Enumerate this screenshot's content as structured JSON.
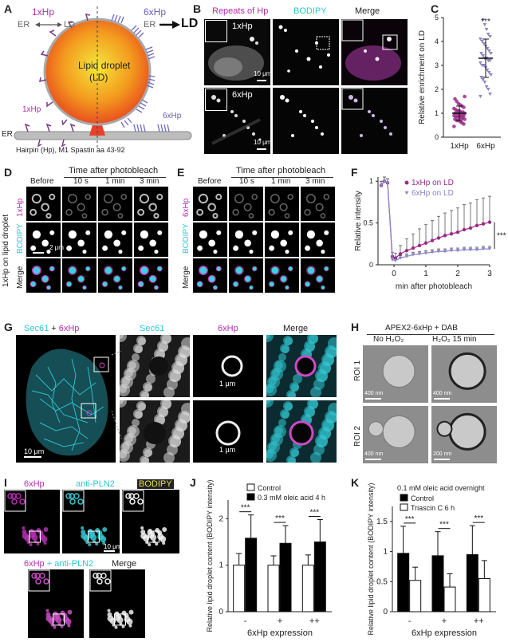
{
  "panels": {
    "A": {
      "letter": "A",
      "label_1x": "1xHp",
      "label_6x": "6xHp",
      "er_left": "ER",
      "arrow_left": "⟷",
      "ld_left": "LD",
      "er_right": "ER",
      "ld_right": "LD",
      "droplet": "Lipid droplet",
      "droplet_sub": "(LD)",
      "label_1x_bottom": "1xHp",
      "label_6x_bottom": "6xHp",
      "er_bottom": "ER",
      "caption": "Hairpin (Hp), M1 Spastin aa 43-92"
    },
    "B": {
      "letter": "B",
      "col1": "Repeats of Hp",
      "col2": "BODIPY",
      "col3": "Merge",
      "row1": "1xHp",
      "row2": "6xHp",
      "scale1": "10 μm",
      "scale2": "10 μm"
    },
    "C": {
      "letter": "C",
      "sig": "***"
    },
    "D": {
      "letter": "D",
      "header": "Time after photobleach",
      "cols": [
        "Before",
        "10 s",
        "1 min",
        "3 min"
      ],
      "rows": [
        "1xHp",
        "BODIPY",
        "Merge"
      ],
      "side": "1xHp on lipid droplet",
      "scale": "2 μm"
    },
    "E": {
      "letter": "E",
      "header": "Time after photobleach",
      "cols": [
        "Before",
        "10 s",
        "1 min",
        "3 min"
      ],
      "rows": [
        "6xHp",
        "BODIPY",
        "Merge"
      ]
    },
    "F": {
      "letter": "F",
      "sig": "***"
    },
    "G": {
      "letter": "G",
      "title_a": "Sec61",
      "title_plus": " + ",
      "title_b": "6xHp",
      "cols": [
        "Sec61",
        "6xHp",
        "Merge"
      ],
      "scale_main": "10 μm",
      "scale_zoom1": "1 μm",
      "scale_zoom2": "1 μm"
    },
    "H": {
      "letter": "H",
      "title": "APEX2-6xHp + DAB",
      "col1": "No H₂O₂",
      "col2": "H₂O₂ 15 min",
      "row1": "ROI 1",
      "row2": "ROI 2",
      "scales": [
        "400 nm",
        "400 nm",
        "400 nm",
        "200 nm"
      ]
    },
    "I": {
      "letter": "I",
      "c1": "6xHp",
      "c2": "anti-PLN2",
      "c3": "BODIPY",
      "c4a": "6xHp",
      "c4plus": " + ",
      "c4b": "anti-PLN2",
      "c5": "Merge",
      "scale": "10 μm"
    },
    "J": {
      "letter": "J"
    },
    "K": {
      "letter": "K"
    }
  },
  "chart_data": [
    {
      "panel": "C",
      "type": "scatter",
      "ylabel": "Relative enrichment on LD",
      "categories": [
        "1xHp",
        "6xHp"
      ],
      "yticks": [
        0,
        1,
        2,
        3,
        4,
        5
      ],
      "ylim": [
        0,
        5
      ],
      "series": [
        {
          "name": "1xHp",
          "color": "#9c2a87",
          "mean": 1.0,
          "sd": 0.3,
          "values": [
            0.45,
            0.55,
            0.6,
            0.65,
            0.7,
            0.7,
            0.75,
            0.75,
            0.8,
            0.8,
            0.85,
            0.85,
            0.85,
            0.9,
            0.9,
            0.9,
            0.95,
            0.95,
            1.0,
            1.0,
            1.0,
            1.05,
            1.05,
            1.1,
            1.1,
            1.15,
            1.2,
            1.25,
            1.3,
            1.35,
            1.4,
            1.5,
            1.6,
            1.7
          ]
        },
        {
          "name": "6xHp",
          "color": "#7d6fb8",
          "mean": 3.3,
          "sd": 0.8,
          "values": [
            1.7,
            1.8,
            2.0,
            2.1,
            2.3,
            2.4,
            2.5,
            2.6,
            2.7,
            2.8,
            2.9,
            3.0,
            3.0,
            3.1,
            3.2,
            3.2,
            3.3,
            3.3,
            3.4,
            3.5,
            3.5,
            3.6,
            3.7,
            3.8,
            3.9,
            4.0,
            4.1,
            4.2,
            4.3,
            4.5,
            4.7,
            4.9
          ]
        }
      ],
      "annotations": [
        "***"
      ]
    },
    {
      "panel": "F",
      "type": "line",
      "xlabel": "min after photobleach",
      "ylabel": "Relative intensity",
      "xticks": [
        0,
        1,
        2,
        3
      ],
      "xlim": [
        -0.5,
        3
      ],
      "yticks": [
        0,
        0.5,
        1
      ],
      "ylim": [
        0,
        1.05
      ],
      "series": [
        {
          "name": "1xHp on LD",
          "color": "#9c2a87",
          "x": [
            -0.4,
            -0.3,
            -0.2,
            -0.05,
            0.05,
            0.2,
            0.4,
            0.6,
            0.8,
            1.0,
            1.2,
            1.4,
            1.6,
            1.8,
            2.0,
            2.2,
            2.4,
            2.6,
            2.8,
            3.0
          ],
          "y": [
            0.95,
            1.0,
            0.98,
            0.1,
            0.08,
            0.13,
            0.17,
            0.2,
            0.23,
            0.26,
            0.29,
            0.32,
            0.35,
            0.37,
            0.39,
            0.42,
            0.44,
            0.47,
            0.49,
            0.51
          ],
          "err": [
            0.05,
            0.05,
            0.05,
            0.05,
            0.06,
            0.1,
            0.14,
            0.17,
            0.2,
            0.22,
            0.24,
            0.26,
            0.27,
            0.28,
            0.29,
            0.3,
            0.3,
            0.31,
            0.31,
            0.31
          ]
        },
        {
          "name": "6xHp on LD",
          "color": "#8a84c8",
          "x": [
            -0.4,
            -0.3,
            -0.2,
            -0.05,
            0.05,
            0.2,
            0.4,
            0.6,
            0.8,
            1.0,
            1.2,
            1.4,
            1.6,
            1.8,
            2.0,
            2.2,
            2.4,
            2.6,
            2.8,
            3.0
          ],
          "y": [
            0.95,
            1.0,
            0.98,
            0.06,
            0.05,
            0.08,
            0.1,
            0.12,
            0.13,
            0.14,
            0.15,
            0.16,
            0.16,
            0.17,
            0.17,
            0.18,
            0.18,
            0.18,
            0.19,
            0.19
          ],
          "err": [
            0.05,
            0.05,
            0.05,
            0.03,
            0.03,
            0.03,
            0.03,
            0.03,
            0.03,
            0.03,
            0.03,
            0.03,
            0.03,
            0.03,
            0.03,
            0.03,
            0.03,
            0.03,
            0.03,
            0.03
          ]
        }
      ],
      "annotations": [
        "***"
      ]
    },
    {
      "panel": "J",
      "type": "bar",
      "xlabel": "6xHp expression",
      "ylabel": "Relative lipid droplet content (BODIPY intensity)",
      "categories": [
        "-",
        "+",
        "++"
      ],
      "yticks": [
        0,
        1,
        2
      ],
      "ylim": [
        0,
        2.4
      ],
      "series": [
        {
          "name": "Control",
          "color": "#ffffff",
          "values": [
            1.0,
            1.0,
            1.0
          ],
          "err": [
            0.25,
            0.2,
            0.22
          ]
        },
        {
          "name": "0.3 mM oleic acid 4 h",
          "color": "#000000",
          "values": [
            1.58,
            1.47,
            1.5
          ],
          "err": [
            0.5,
            0.38,
            0.48
          ]
        }
      ],
      "annotations": [
        "***",
        "***",
        "***"
      ]
    },
    {
      "panel": "K",
      "type": "bar",
      "title": "0.1 mM oleic acid overnight",
      "xlabel": "6xHp expression",
      "ylabel": "Relative lipid droplet content (BODIPY intensity)",
      "categories": [
        "-",
        "+",
        "++"
      ],
      "yticks": [
        0,
        0.5,
        1,
        1.5
      ],
      "ylim": [
        0,
        1.75
      ],
      "series": [
        {
          "name": "Control",
          "color": "#000000",
          "values": [
            0.97,
            0.93,
            0.95
          ],
          "err": [
            0.45,
            0.4,
            0.48
          ]
        },
        {
          "name": "Triascin C 6 h",
          "color": "#ffffff",
          "values": [
            0.52,
            0.41,
            0.55
          ],
          "err": [
            0.22,
            0.22,
            0.3
          ]
        }
      ],
      "annotations": [
        "***",
        "***",
        "***"
      ]
    }
  ]
}
